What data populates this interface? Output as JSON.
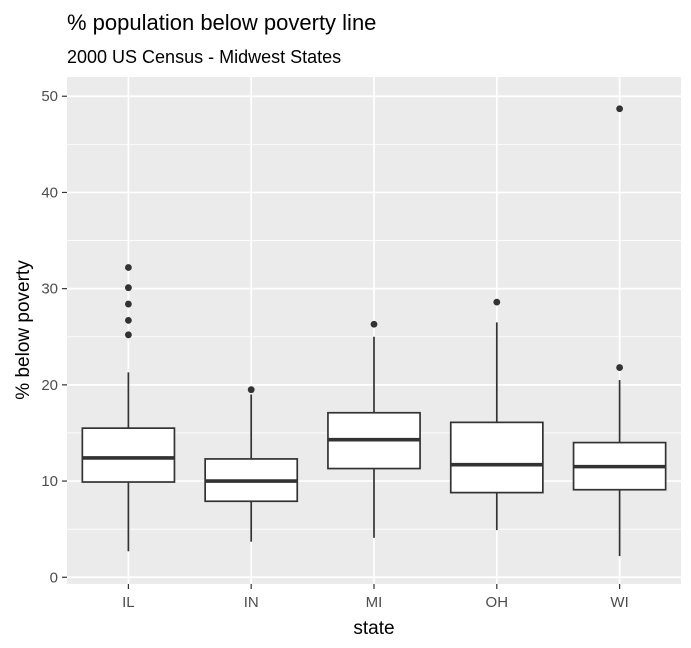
{
  "chart_data": {
    "type": "boxplot",
    "title": "% population below poverty line",
    "subtitle": "2000 US Census - Midwest States",
    "xlabel": "state",
    "ylabel": "% below poverty",
    "ylim": [
      -0.7,
      52
    ],
    "yticks": [
      0,
      10,
      20,
      30,
      40,
      50
    ],
    "ytick_labels": [
      "0",
      "10",
      "20",
      "30",
      "40",
      "50"
    ],
    "grid": true,
    "colors": {
      "panel": "#ebebeb",
      "grid_major": "#ffffff",
      "box_fill": "#ffffff",
      "box_stroke": "#333333",
      "outlier": "#333333"
    },
    "categories": [
      "IL",
      "IN",
      "MI",
      "OH",
      "WI"
    ],
    "boxes": [
      {
        "category": "IL",
        "whisker_low": 2.7,
        "q1": 9.9,
        "median": 12.4,
        "q3": 15.5,
        "whisker_high": 21.3,
        "outliers": [
          25.2,
          26.7,
          28.4,
          30.1,
          32.2
        ]
      },
      {
        "category": "IN",
        "whisker_low": 3.7,
        "q1": 7.9,
        "median": 10.0,
        "q3": 12.3,
        "whisker_high": 19.0,
        "outliers": [
          19.5
        ]
      },
      {
        "category": "MI",
        "whisker_low": 4.1,
        "q1": 11.3,
        "median": 14.3,
        "q3": 17.1,
        "whisker_high": 25.0,
        "outliers": [
          26.3
        ]
      },
      {
        "category": "OH",
        "whisker_low": 4.9,
        "q1": 8.8,
        "median": 11.7,
        "q3": 16.1,
        "whisker_high": 26.5,
        "outliers": [
          28.6
        ]
      },
      {
        "category": "WI",
        "whisker_low": 2.2,
        "q1": 9.1,
        "median": 11.5,
        "q3": 14.0,
        "whisker_high": 20.5,
        "outliers": [
          21.8,
          48.7
        ]
      }
    ]
  }
}
